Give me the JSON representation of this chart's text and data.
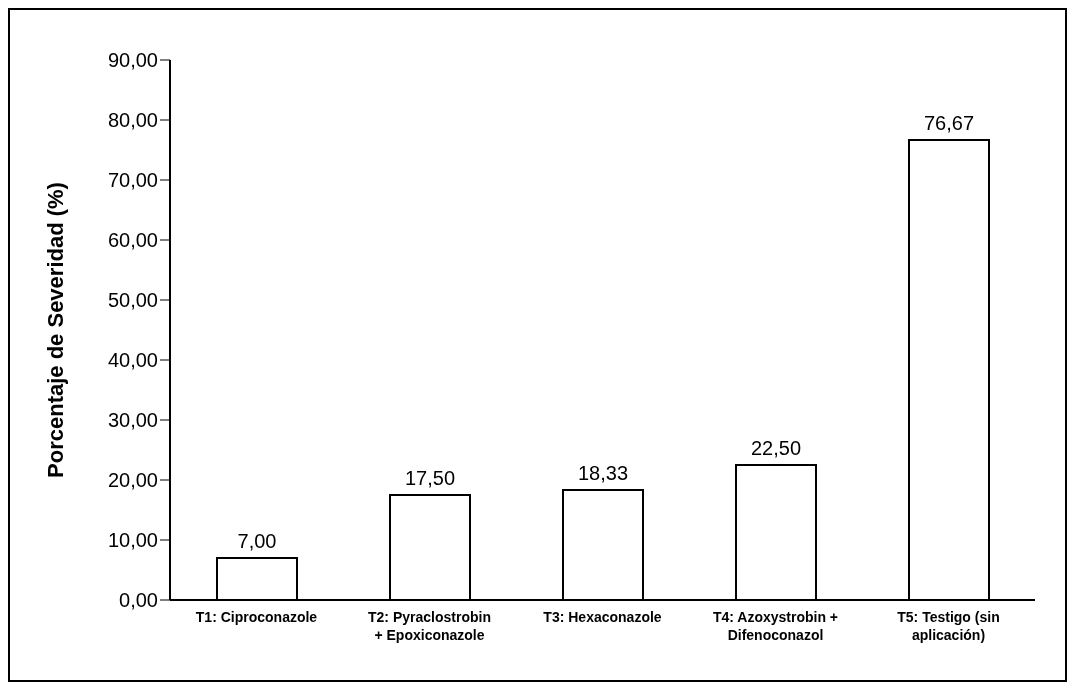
{
  "chart_data": {
    "type": "bar",
    "ylabel": "Porcentaje de Severidad (%)",
    "categories": [
      "T1: Ciproconazole",
      "T2: Pyraclostrobin + Epoxiconazole",
      "T3: Hexaconazole",
      "T4: Azoxystrobin + Difenoconazol",
      "T5: Testigo (sin aplicación)"
    ],
    "values": [
      7.0,
      17.5,
      18.33,
      22.5,
      76.67
    ],
    "value_labels": [
      "7,00",
      "17,50",
      "18,33",
      "22,50",
      "76,67"
    ],
    "color": "#ffffff",
    "ylim": [
      0,
      90
    ],
    "yticks": [
      {
        "value": 0,
        "label": "0,00"
      },
      {
        "value": 10,
        "label": "10,00"
      },
      {
        "value": 20,
        "label": "20,00"
      },
      {
        "value": 30,
        "label": "30,00"
      },
      {
        "value": 40,
        "label": "40,00"
      },
      {
        "value": 50,
        "label": "50,00"
      },
      {
        "value": 60,
        "label": "60,00"
      },
      {
        "value": 70,
        "label": "70,00"
      },
      {
        "value": 80,
        "label": "80,00"
      },
      {
        "value": 90,
        "label": "90,00"
      }
    ],
    "grid": false,
    "legend": false
  }
}
